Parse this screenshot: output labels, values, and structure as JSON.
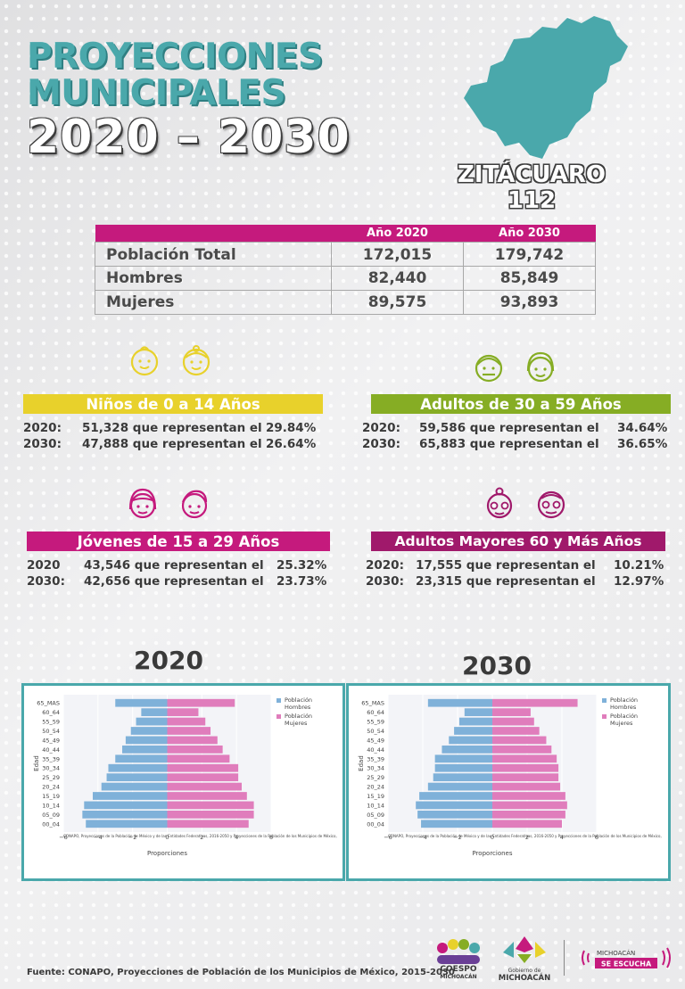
{
  "header": {
    "line1": "PROYECCIONES",
    "line2": "MUNICIPALES",
    "line3": "2020 – 2030"
  },
  "municipality": {
    "name": "ZITÁCUARO",
    "code": "112"
  },
  "colors": {
    "teal": "#4aa8ab",
    "magenta": "#c51a7d",
    "yellow": "#e8d12b",
    "green": "#86ad24",
    "hombres": "#7fb1d9",
    "mujeres": "#e07dbc"
  },
  "summary": {
    "col1": "Año 2020",
    "col2": "Año 2030",
    "rows": [
      {
        "label": "Población Total",
        "v2020": "172,015",
        "v2030": "179,742"
      },
      {
        "label": "Hombres",
        "v2020": "82,440",
        "v2030": "85,849"
      },
      {
        "label": "Mujeres",
        "v2020": "89,575",
        "v2030": "93,893"
      }
    ]
  },
  "groups": {
    "ninos": {
      "title": "Niños de 0 a 14 Años",
      "rows": [
        {
          "year": "2020:",
          "text": "51,328 que representan el",
          "pct": "29.84%"
        },
        {
          "year": "2030:",
          "text": "47,888 que representan el",
          "pct": "26.64%"
        }
      ]
    },
    "adultos": {
      "title": "Adultos de 30 a 59 Años",
      "rows": [
        {
          "year": "2020:",
          "text": "59,586 que representan el",
          "pct": "34.64%"
        },
        {
          "year": "2030:",
          "text": "65,883 que representan el",
          "pct": "36.65%"
        }
      ]
    },
    "jovenes": {
      "title": "Jóvenes de 15 a 29 Años",
      "rows": [
        {
          "year": "2020",
          "text": "43,546 que representan el",
          "pct": "25.32%"
        },
        {
          "year": "2030:",
          "text": "42,656 que representan el",
          "pct": "23.73%"
        }
      ]
    },
    "mayores": {
      "title": "Adultos Mayores  60 y Más Años",
      "rows": [
        {
          "year": "2020:",
          "text": "17,555 que representan el",
          "pct": "10.21%"
        },
        {
          "year": "2030:",
          "text": "23,315 que representan el",
          "pct": "12.97%"
        }
      ]
    }
  },
  "pyramids": {
    "year2020": "2020",
    "year2030": "2030"
  },
  "chart_data": [
    {
      "type": "bar",
      "orientation": "horizontal",
      "title": "",
      "xlabel": "Proporciones",
      "ylabel": "Edad",
      "xlim": [
        -6,
        6
      ],
      "xticks": [
        "−6",
        "−4",
        "−2",
        "0",
        "2",
        "4",
        "6"
      ],
      "categories": [
        "00_04",
        "05_09",
        "10_14",
        "15_19",
        "20_24",
        "25_29",
        "30_34",
        "35_39",
        "40_44",
        "45_49",
        "50_54",
        "55_59",
        "60_64",
        "65_MAS"
      ],
      "series": [
        {
          "name": "Población Hombres",
          "values": [
            -4.7,
            -4.9,
            -4.8,
            -4.3,
            -3.8,
            -3.5,
            -3.4,
            -3.0,
            -2.6,
            -2.4,
            -2.1,
            -1.8,
            -1.5,
            -3.0
          ]
        },
        {
          "name": "Población Mujeres",
          "values": [
            4.7,
            5.0,
            5.0,
            4.6,
            4.3,
            4.1,
            4.1,
            3.6,
            3.2,
            2.9,
            2.5,
            2.2,
            1.8,
            3.9
          ]
        }
      ],
      "legend": "top-right",
      "source": "CONAPO, Proyecciones de la Población de México y de las Entidades Federativas, 2016-2050 y Proyecciones de la Población de los Municipios de México,"
    },
    {
      "type": "bar",
      "orientation": "horizontal",
      "title": "",
      "xlabel": "Proporciones",
      "ylabel": "Edad",
      "xlim": [
        -6,
        6
      ],
      "xticks": [
        "−6",
        "−4",
        "−2",
        "0",
        "2",
        "4",
        "6"
      ],
      "categories": [
        "00_04",
        "05_09",
        "10_14",
        "15_19",
        "20_24",
        "25_29",
        "30_34",
        "35_39",
        "40_44",
        "45_49",
        "50_54",
        "55_59",
        "60_64",
        "65_MAS"
      ],
      "series": [
        {
          "name": "Población Hombres",
          "values": [
            -4.1,
            -4.3,
            -4.4,
            -4.2,
            -3.7,
            -3.4,
            -3.3,
            -3.3,
            -2.9,
            -2.5,
            -2.2,
            -1.9,
            -1.6,
            -3.7
          ]
        },
        {
          "name": "Población Mujeres",
          "values": [
            4.0,
            4.2,
            4.3,
            4.2,
            3.9,
            3.8,
            3.8,
            3.7,
            3.4,
            3.1,
            2.7,
            2.4,
            2.2,
            4.9
          ]
        }
      ],
      "legend": "top-right",
      "source": "CONAPO, Proyecciones de la Población de México y de las Entidades Federativas, 2016-2050 y Proyecciones de la Población de los Municipios de México,"
    }
  ],
  "footer": {
    "source": "Fuente: CONAPO, Proyecciones de Población de los Municipios de México, 2015-2030",
    "logo1_top": "COESPO",
    "logo1_bottom": "MICHOACÁN",
    "logo2_top": "Gobierno de",
    "logo2_bottom": "MICHOACÁN",
    "logo3_top": "MICHOACÁN",
    "logo3_bottom": "SE ESCUCHA"
  }
}
